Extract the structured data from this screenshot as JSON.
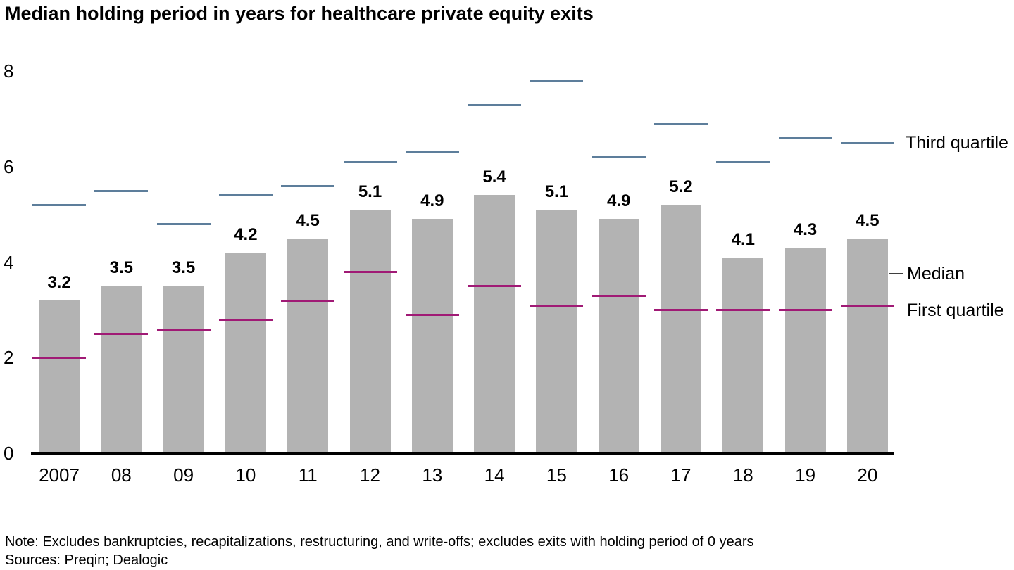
{
  "title": "Median holding period in years for healthcare private equity exits",
  "note": "Note: Excludes bankruptcies, recapitalizations, restructuring, and write-offs; excludes exits with holding period of 0 years",
  "sources": "Sources: Preqin; Dealogic",
  "legend": {
    "third_quartile": "Third quartile",
    "median": "Median",
    "first_quartile": "First quartile"
  },
  "colors": {
    "bar": "#b3b3b3",
    "third_quartile_line": "#5d7e9b",
    "first_quartile_line": "#a01a75",
    "axis": "#000000"
  },
  "chart_data": {
    "type": "bar",
    "title": "Median holding period in years for healthcare private equity exits",
    "categories": [
      "2007",
      "08",
      "09",
      "10",
      "11",
      "12",
      "13",
      "14",
      "15",
      "16",
      "17",
      "18",
      "19",
      "20"
    ],
    "series": [
      {
        "name": "Median",
        "values": [
          3.2,
          3.5,
          3.5,
          4.2,
          4.5,
          5.1,
          4.9,
          5.4,
          5.1,
          4.9,
          5.2,
          4.1,
          4.3,
          4.5
        ]
      },
      {
        "name": "First quartile",
        "values": [
          2.0,
          2.5,
          2.6,
          2.8,
          3.2,
          3.8,
          2.9,
          3.5,
          3.1,
          3.3,
          3.0,
          3.0,
          3.0,
          3.1
        ]
      },
      {
        "name": "Third quartile",
        "values": [
          5.2,
          5.5,
          4.8,
          5.4,
          5.6,
          6.1,
          6.3,
          7.3,
          7.8,
          6.2,
          6.9,
          6.1,
          6.6,
          6.5
        ]
      }
    ],
    "bar_labels": [
      "3.2",
      "3.5",
      "3.5",
      "4.2",
      "4.5",
      "5.1",
      "4.9",
      "5.4",
      "5.1",
      "4.9",
      "5.2",
      "4.1",
      "4.3",
      "4.5"
    ],
    "xlabel": "",
    "ylabel": "",
    "y_ticks": [
      0,
      2,
      4,
      6,
      8
    ],
    "ylim": [
      0,
      8
    ],
    "grid": false,
    "legend_position": "right"
  }
}
